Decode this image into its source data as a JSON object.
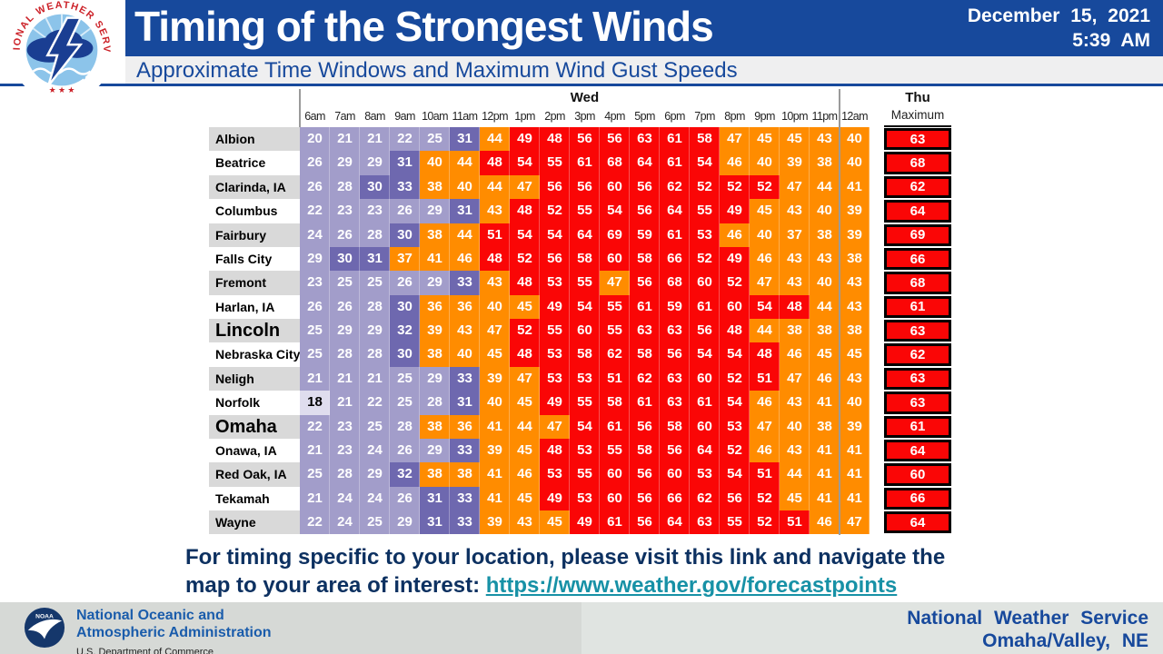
{
  "header": {
    "title": "Timing of the Strongest Winds",
    "subtitle": "Approximate Time Windows and Maximum Wind Gust Speeds",
    "date": "December 15, 2021",
    "time": "5:39 AM"
  },
  "nws_seal": {
    "ring_text": "NATIONAL WEATHER SERVICE",
    "stars": "★ ★ ★"
  },
  "chart_data": {
    "type": "heatmap",
    "title": "Timing of the Strongest Winds",
    "subtitle": "Approximate Time Windows and Maximum Wind Gust Speeds",
    "day_labels": {
      "wed": "Wed",
      "thu": "Thu"
    },
    "time_columns": [
      "6am",
      "7am",
      "8am",
      "9am",
      "10am",
      "11am",
      "12pm",
      "1pm",
      "2pm",
      "3pm",
      "4pm",
      "5pm",
      "6pm",
      "7pm",
      "8pm",
      "9pm",
      "10pm",
      "11pm",
      "12am"
    ],
    "max_column_label": "Maximum",
    "color_scale": [
      {
        "max": 19,
        "bg": "#dfddee",
        "text": "#000000"
      },
      {
        "max": 29,
        "bg": "#a29dca",
        "text": "#ffffff"
      },
      {
        "max": 35,
        "bg": "#6e68af",
        "text": "#ffffff"
      },
      {
        "max": 47,
        "bg": "#ff8c00",
        "text": "#ffffff"
      },
      {
        "max": 999,
        "bg": "#fa0606",
        "text": "#ffffff"
      }
    ],
    "rows": [
      {
        "city": "Albion",
        "emphasis": false,
        "values": [
          20,
          21,
          21,
          22,
          25,
          31,
          44,
          49,
          48,
          56,
          56,
          63,
          61,
          58,
          47,
          45,
          45,
          43,
          40
        ],
        "max": 63
      },
      {
        "city": "Beatrice",
        "emphasis": false,
        "values": [
          26,
          29,
          29,
          31,
          40,
          44,
          48,
          54,
          55,
          61,
          68,
          64,
          61,
          54,
          46,
          40,
          39,
          38,
          40
        ],
        "max": 68
      },
      {
        "city": "Clarinda, IA",
        "emphasis": false,
        "values": [
          26,
          28,
          30,
          33,
          38,
          40,
          44,
          47,
          56,
          56,
          60,
          56,
          62,
          52,
          52,
          52,
          47,
          44,
          41
        ],
        "max": 62
      },
      {
        "city": "Columbus",
        "emphasis": false,
        "values": [
          22,
          23,
          23,
          26,
          29,
          31,
          43,
          48,
          52,
          55,
          54,
          56,
          64,
          55,
          49,
          45,
          43,
          40,
          39
        ],
        "max": 64
      },
      {
        "city": "Fairbury",
        "emphasis": false,
        "values": [
          24,
          26,
          28,
          30,
          38,
          44,
          51,
          54,
          54,
          64,
          69,
          59,
          61,
          53,
          46,
          40,
          37,
          38,
          39
        ],
        "max": 69
      },
      {
        "city": "Falls City",
        "emphasis": false,
        "values": [
          29,
          30,
          31,
          37,
          41,
          46,
          48,
          52,
          56,
          58,
          60,
          58,
          66,
          52,
          49,
          46,
          43,
          43,
          38
        ],
        "max": 66
      },
      {
        "city": "Fremont",
        "emphasis": false,
        "values": [
          23,
          25,
          25,
          26,
          29,
          33,
          43,
          48,
          53,
          55,
          47,
          56,
          68,
          60,
          52,
          47,
          43,
          40,
          43
        ],
        "max": 68
      },
      {
        "city": "Harlan, IA",
        "emphasis": false,
        "values": [
          26,
          26,
          28,
          30,
          36,
          36,
          40,
          45,
          49,
          54,
          55,
          61,
          59,
          61,
          60,
          54,
          48,
          44,
          43
        ],
        "max": 61
      },
      {
        "city": "Lincoln",
        "emphasis": true,
        "values": [
          25,
          29,
          29,
          32,
          39,
          43,
          47,
          52,
          55,
          60,
          55,
          63,
          63,
          56,
          48,
          44,
          38,
          38,
          38
        ],
        "max": 63
      },
      {
        "city": "Nebraska City",
        "emphasis": false,
        "values": [
          25,
          28,
          28,
          30,
          38,
          40,
          45,
          48,
          53,
          58,
          62,
          58,
          56,
          54,
          54,
          48,
          46,
          45,
          45
        ],
        "max": 62
      },
      {
        "city": "Neligh",
        "emphasis": false,
        "values": [
          21,
          21,
          21,
          25,
          29,
          33,
          39,
          47,
          53,
          53,
          51,
          62,
          63,
          60,
          52,
          51,
          47,
          46,
          43
        ],
        "max": 63
      },
      {
        "city": "Norfolk",
        "emphasis": false,
        "values": [
          18,
          21,
          22,
          25,
          28,
          31,
          40,
          45,
          49,
          55,
          58,
          61,
          63,
          61,
          54,
          46,
          43,
          41,
          40
        ],
        "max": 63
      },
      {
        "city": "Omaha",
        "emphasis": true,
        "values": [
          22,
          23,
          25,
          28,
          38,
          36,
          41,
          44,
          47,
          54,
          61,
          56,
          58,
          60,
          53,
          47,
          40,
          38,
          39
        ],
        "max": 61
      },
      {
        "city": "Onawa, IA",
        "emphasis": false,
        "values": [
          21,
          23,
          24,
          26,
          29,
          33,
          39,
          45,
          48,
          53,
          55,
          58,
          56,
          64,
          52,
          46,
          43,
          41,
          41
        ],
        "max": 64
      },
      {
        "city": "Red Oak, IA",
        "emphasis": false,
        "values": [
          25,
          28,
          29,
          32,
          38,
          38,
          41,
          46,
          53,
          55,
          60,
          56,
          60,
          53,
          54,
          51,
          44,
          41,
          41
        ],
        "max": 60
      },
      {
        "city": "Tekamah",
        "emphasis": false,
        "values": [
          21,
          24,
          24,
          26,
          31,
          33,
          41,
          45,
          49,
          53,
          60,
          56,
          66,
          62,
          56,
          52,
          45,
          41,
          41
        ],
        "max": 66
      },
      {
        "city": "Wayne",
        "emphasis": false,
        "values": [
          22,
          24,
          25,
          29,
          31,
          33,
          39,
          43,
          45,
          49,
          61,
          56,
          64,
          63,
          55,
          52,
          51,
          46,
          47
        ],
        "max": 64
      }
    ]
  },
  "footer": {
    "line1": "For timing specific to your location, please visit this link and navigate the",
    "line2_prefix": "map to your area of interest: ",
    "link": "https://www.weather.gov/forecastpoints"
  },
  "bottom_bar": {
    "noaa_label": "NOAA",
    "agency_line1": "National Oceanic and",
    "agency_line2": "Atmospheric Administration",
    "agency_line3": "U.S. Department of Commerce",
    "office_line1": "National Weather Service",
    "office_line2": "Omaha/Valley, NE"
  }
}
